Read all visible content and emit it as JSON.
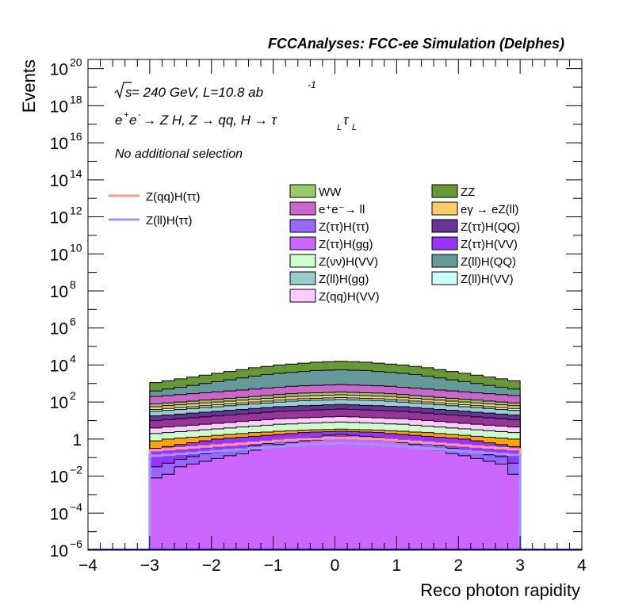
{
  "chart_data": {
    "type": "stacked-histogram",
    "title": "FCCAnalyses: FCC-ee Simulation (Delphes)",
    "annotations": {
      "energy_prefix": "s",
      "energy": " = 240 GeV, L=10.8 ab",
      "energy_exp": "-1",
      "process_main": "e",
      "process_rest": " → Z H, Z  → qq, H  → τ",
      "sub_L": "L",
      "sel": "No additional selection"
    },
    "xlabel": "Reco photon rapidity",
    "ylabel": "Events",
    "xlim": [
      -4,
      4
    ],
    "ylim_log10": [
      -6,
      20.5
    ],
    "y_log": true,
    "grid": false,
    "legend_position": "top",
    "x_tick_labels": [
      "−4",
      "−3",
      "−2",
      "−1",
      "0",
      "1",
      "2",
      "3",
      "4"
    ],
    "y_tick_labels": [
      {
        "base": "10",
        "exp": "−6",
        "v": -6
      },
      {
        "base": "10",
        "exp": "−4",
        "v": -4
      },
      {
        "base": "10",
        "exp": "−2",
        "v": -2
      },
      {
        "base": "1",
        "exp": "",
        "v": 0
      },
      {
        "base": "10",
        "exp": "2",
        "v": 2
      },
      {
        "base": "10",
        "exp": "4",
        "v": 4
      },
      {
        "base": "10",
        "exp": "6",
        "v": 6
      },
      {
        "base": "10",
        "exp": "8",
        "v": 8
      },
      {
        "base": "10",
        "exp": "10",
        "v": 10
      },
      {
        "base": "10",
        "exp": "12",
        "v": 12
      },
      {
        "base": "10",
        "exp": "14",
        "v": 14
      },
      {
        "base": "10",
        "exp": "16",
        "v": 16
      },
      {
        "base": "10",
        "exp": "18",
        "v": 18
      },
      {
        "base": "10",
        "exp": "20",
        "v": 20
      }
    ],
    "bin_edges": [
      -3.0,
      -2.8,
      -2.6,
      -2.4,
      -2.2,
      -2.0,
      -1.8,
      -1.6,
      -1.4,
      -1.2,
      -1.0,
      -0.8,
      -0.6,
      -0.4,
      -0.2,
      0.0,
      0.2,
      0.4,
      0.6,
      0.8,
      1.0,
      1.2,
      1.4,
      1.6,
      1.8,
      2.0,
      2.2,
      2.4,
      2.6,
      2.8,
      3.0
    ],
    "stack_colors": [
      "#cc66ff",
      "#9966ff",
      "#9933ff",
      "#ffa500",
      "#ccffcc",
      "#ffccff",
      "#993399",
      "#663399",
      "#99cccc",
      "#ccffff",
      "#ffcc66",
      "#99cc66",
      "#cc66cc",
      "#669999",
      "#669933"
    ],
    "stack_cumulative_log10": [
      [
        -2.1,
        -1.9,
        -1.5,
        -1.35,
        -1.2,
        -1.05,
        -0.9,
        -0.8,
        -0.6,
        -0.45,
        -0.3,
        -0.2,
        -0.1,
        -0.05,
        0.05,
        0.15,
        0.1,
        0.05,
        -0.05,
        -0.1,
        -0.2,
        -0.3,
        -0.45,
        -0.6,
        -0.8,
        -0.9,
        -1.05,
        -1.2,
        -1.35,
        -1.9
      ],
      [
        -1.5,
        -1.3,
        -1.1,
        -0.95,
        -0.8,
        -0.7,
        -0.6,
        -0.5,
        -0.35,
        -0.25,
        -0.15,
        -0.05,
        0.05,
        0.1,
        0.2,
        0.25,
        0.2,
        0.15,
        0.1,
        0.0,
        -0.05,
        -0.15,
        -0.25,
        -0.35,
        -0.5,
        -0.6,
        -0.7,
        -0.85,
        -0.95,
        -1.3
      ],
      [
        -0.5,
        -0.4,
        -0.3,
        -0.2,
        -0.1,
        0.0,
        0.05,
        0.1,
        0.15,
        0.2,
        0.25,
        0.3,
        0.35,
        0.38,
        0.4,
        0.42,
        0.4,
        0.38,
        0.35,
        0.3,
        0.25,
        0.2,
        0.15,
        0.1,
        0.05,
        0.0,
        -0.1,
        -0.2,
        -0.3,
        -0.4
      ],
      [
        -0.1,
        0.0,
        0.05,
        0.1,
        0.15,
        0.2,
        0.25,
        0.3,
        0.35,
        0.38,
        0.42,
        0.45,
        0.48,
        0.5,
        0.52,
        0.54,
        0.52,
        0.5,
        0.48,
        0.45,
        0.42,
        0.38,
        0.35,
        0.3,
        0.25,
        0.2,
        0.15,
        0.1,
        0.05,
        0.0
      ],
      [
        0.3,
        0.35,
        0.4,
        0.45,
        0.5,
        0.55,
        0.6,
        0.65,
        0.7,
        0.75,
        0.8,
        0.82,
        0.85,
        0.87,
        0.9,
        0.92,
        0.9,
        0.87,
        0.85,
        0.82,
        0.8,
        0.75,
        0.7,
        0.65,
        0.6,
        0.55,
        0.5,
        0.45,
        0.4,
        0.35
      ],
      [
        0.6,
        0.65,
        0.7,
        0.75,
        0.8,
        0.85,
        0.9,
        0.95,
        1.0,
        1.05,
        1.1,
        1.12,
        1.15,
        1.17,
        1.2,
        1.22,
        1.2,
        1.17,
        1.15,
        1.12,
        1.1,
        1.05,
        1.0,
        0.95,
        0.9,
        0.85,
        0.8,
        0.75,
        0.7,
        0.65
      ],
      [
        1.0,
        1.05,
        1.1,
        1.15,
        1.2,
        1.25,
        1.3,
        1.35,
        1.4,
        1.45,
        1.5,
        1.52,
        1.55,
        1.57,
        1.6,
        1.62,
        1.6,
        1.57,
        1.55,
        1.52,
        1.5,
        1.45,
        1.4,
        1.35,
        1.3,
        1.25,
        1.2,
        1.15,
        1.1,
        1.05
      ],
      [
        1.25,
        1.3,
        1.35,
        1.4,
        1.45,
        1.5,
        1.55,
        1.6,
        1.65,
        1.7,
        1.75,
        1.77,
        1.8,
        1.82,
        1.85,
        1.87,
        1.85,
        1.82,
        1.8,
        1.77,
        1.75,
        1.7,
        1.65,
        1.6,
        1.55,
        1.5,
        1.45,
        1.4,
        1.35,
        1.3
      ],
      [
        1.5,
        1.55,
        1.6,
        1.65,
        1.7,
        1.75,
        1.8,
        1.85,
        1.9,
        1.95,
        2.0,
        2.05,
        2.08,
        2.1,
        2.12,
        2.14,
        2.12,
        2.1,
        2.08,
        2.05,
        2.0,
        1.95,
        1.9,
        1.85,
        1.8,
        1.75,
        1.7,
        1.65,
        1.6,
        1.55
      ],
      [
        1.6,
        1.65,
        1.7,
        1.75,
        1.8,
        1.85,
        1.9,
        1.95,
        2.0,
        2.05,
        2.1,
        2.15,
        2.18,
        2.2,
        2.22,
        2.24,
        2.22,
        2.2,
        2.18,
        2.15,
        2.1,
        2.05,
        2.0,
        1.95,
        1.9,
        1.85,
        1.8,
        1.75,
        1.7,
        1.65
      ],
      [
        1.75,
        1.8,
        1.85,
        1.9,
        1.95,
        2.0,
        2.05,
        2.1,
        2.15,
        2.2,
        2.25,
        2.3,
        2.32,
        2.35,
        2.37,
        2.39,
        2.37,
        2.35,
        2.32,
        2.3,
        2.25,
        2.2,
        2.15,
        2.1,
        2.05,
        2.0,
        1.95,
        1.9,
        1.85,
        1.8
      ],
      [
        1.9,
        1.95,
        2.0,
        2.05,
        2.1,
        2.15,
        2.2,
        2.25,
        2.3,
        2.35,
        2.4,
        2.45,
        2.48,
        2.5,
        2.52,
        2.54,
        2.52,
        2.5,
        2.48,
        2.45,
        2.4,
        2.35,
        2.3,
        2.25,
        2.2,
        2.15,
        2.1,
        2.05,
        2.0,
        1.95
      ],
      [
        2.3,
        2.35,
        2.4,
        2.45,
        2.5,
        2.55,
        2.6,
        2.65,
        2.7,
        2.75,
        2.8,
        2.85,
        2.88,
        2.9,
        2.92,
        2.94,
        2.92,
        2.9,
        2.88,
        2.85,
        2.8,
        2.75,
        2.7,
        2.65,
        2.6,
        2.55,
        2.5,
        2.45,
        2.4,
        2.35
      ],
      [
        2.6,
        2.7,
        2.8,
        2.9,
        3.0,
        3.1,
        3.2,
        3.3,
        3.4,
        3.48,
        3.55,
        3.6,
        3.65,
        3.7,
        3.72,
        3.74,
        3.72,
        3.7,
        3.65,
        3.6,
        3.55,
        3.48,
        3.4,
        3.3,
        3.2,
        3.1,
        3.0,
        2.9,
        2.8,
        2.7
      ],
      [
        3.05,
        3.15,
        3.25,
        3.35,
        3.45,
        3.55,
        3.65,
        3.75,
        3.85,
        3.92,
        4.0,
        4.05,
        4.1,
        4.15,
        4.18,
        4.2,
        4.18,
        4.15,
        4.1,
        4.05,
        4.0,
        3.92,
        3.85,
        3.75,
        3.65,
        3.55,
        3.45,
        3.35,
        3.25,
        3.15
      ]
    ],
    "signal_lines": [
      {
        "name": "Z(qq)H(ττ)",
        "color": "#ff9999",
        "log10": [
          -0.6,
          -0.55,
          -0.5,
          -0.45,
          -0.4,
          -0.35,
          -0.3,
          -0.25,
          -0.2,
          -0.15,
          -0.1,
          -0.05,
          0.0,
          0.02,
          0.05,
          0.08,
          0.05,
          0.02,
          0.0,
          -0.05,
          -0.1,
          -0.15,
          -0.2,
          -0.25,
          -0.3,
          -0.35,
          -0.4,
          -0.45,
          -0.5,
          -0.55
        ]
      },
      {
        "name": "Z(ll)H(ττ)",
        "color": "#9999ff",
        "log10": [
          -0.9,
          -0.85,
          -0.8,
          -0.75,
          -0.7,
          -0.65,
          -0.6,
          -0.55,
          -0.5,
          -0.45,
          -0.4,
          -0.35,
          -0.3,
          -0.28,
          -0.25,
          -0.22,
          -0.25,
          -0.28,
          -0.3,
          -0.35,
          -0.4,
          -0.45,
          -0.5,
          -0.55,
          -0.6,
          -0.65,
          -0.7,
          -0.75,
          -0.8,
          -0.85
        ]
      }
    ],
    "legend_signals": [
      {
        "label": "Z(qq)H(ττ)",
        "color": "#ff9999"
      },
      {
        "label": "Z(ll)H(ττ)",
        "color": "#9999ff"
      }
    ],
    "legend_backgrounds": [
      {
        "label": "WW",
        "color": "#99cc66"
      },
      {
        "label": "ZZ",
        "color": "#669933"
      },
      {
        "label": "e⁺e⁻→ ll",
        "color": "#cc66cc"
      },
      {
        "label": "eγ → eZ(ll)",
        "color": "#ffcc66"
      },
      {
        "label": "Z(ττ)H(ττ)",
        "color": "#9966ff"
      },
      {
        "label": "Z(ττ)H(QQ)",
        "color": "#663399"
      },
      {
        "label": "Z(ττ)H(gg)",
        "color": "#cc66ff"
      },
      {
        "label": "Z(ττ)H(VV)",
        "color": "#9933ff"
      },
      {
        "label": "Z(νν)H(VV)",
        "color": "#ccffcc"
      },
      {
        "label": "Z(ll)H(QQ)",
        "color": "#669999"
      },
      {
        "label": "Z(ll)H(gg)",
        "color": "#99cccc"
      },
      {
        "label": "Z(ll)H(VV)",
        "color": "#ccffff"
      },
      {
        "label": "Z(qq)H(VV)",
        "color": "#ffccff"
      }
    ]
  }
}
